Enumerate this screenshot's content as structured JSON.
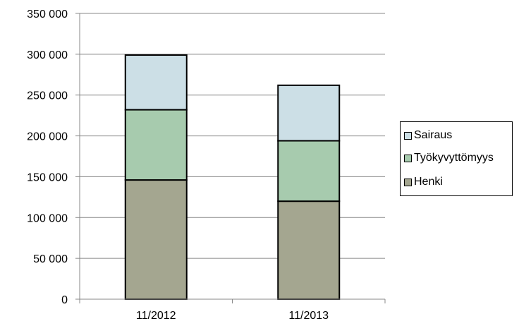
{
  "chart_data": {
    "type": "bar",
    "stacked": true,
    "categories": [
      "11/2012",
      "11/2013"
    ],
    "series": [
      {
        "name": "Henki",
        "values": [
          146000,
          120000
        ],
        "color": "#A4A690"
      },
      {
        "name": "Työkyvyttömyys",
        "values": [
          86000,
          74000
        ],
        "color": "#A7CBAE"
      },
      {
        "name": "Sairaus",
        "values": [
          67000,
          68000
        ],
        "color": "#CCDFE6"
      }
    ],
    "ylim": [
      0,
      350000
    ],
    "yticks": [
      0,
      50000,
      100000,
      150000,
      200000,
      250000,
      300000,
      350000
    ],
    "ytick_labels": [
      "0",
      "50 000",
      "100 000",
      "150 000",
      "200 000",
      "250 000",
      "300 000",
      "350 000"
    ],
    "grid": true,
    "legend_position": "right",
    "legend_order": [
      "Sairaus",
      "Työkyvyttömyys",
      "Henki"
    ]
  }
}
